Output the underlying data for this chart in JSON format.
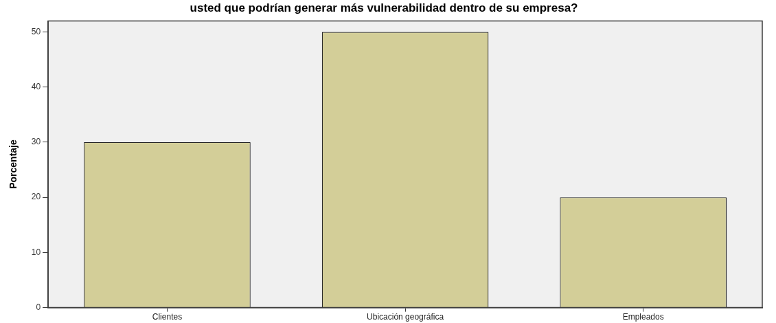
{
  "chart_data": {
    "type": "bar",
    "title": "usted que podrían generar más vulnerabilidad dentro de su empresa?",
    "ylabel": "Porcentaje",
    "categories": [
      "Clientes",
      "Ubicación geográfica",
      "Empleados"
    ],
    "values": [
      30,
      50,
      20
    ],
    "color": "#d3ce98",
    "ylim": [
      0,
      52
    ],
    "yticks": [
      0,
      10,
      20,
      30,
      40,
      50
    ]
  }
}
